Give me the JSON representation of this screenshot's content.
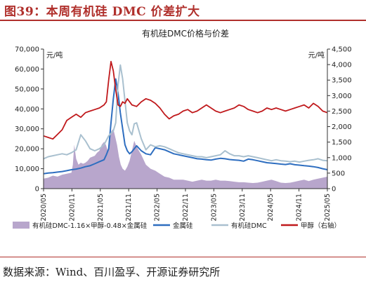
{
  "figure": {
    "title": "图39：本周有机硅 DMC 价差扩大",
    "source": "数据来源：Wind、百川盈孚、开源证券研究所"
  },
  "colors": {
    "title_red": "#b0302c",
    "spread_fill": "#b8a6cc",
    "metal_silicon": "#2e6ec0",
    "dmc": "#a9c0cf",
    "methanol": "#c0191c"
  },
  "chart_data": {
    "type": "line",
    "title": "有机硅DMC价格与价差",
    "left_axis": {
      "unit": "元/吨",
      "ylim": [
        0,
        70000
      ],
      "ticks": [
        0,
        10000,
        20000,
        30000,
        40000,
        50000,
        60000,
        70000
      ]
    },
    "right_axis": {
      "unit": "元/吨",
      "ylim": [
        0,
        4500
      ],
      "ticks": [
        0,
        500,
        1000,
        1500,
        2000,
        2500,
        3000,
        3500,
        4000,
        4500
      ]
    },
    "x_tick_labels": [
      "2020/05",
      "2020/11",
      "2021/05",
      "2021/11",
      "2022/05",
      "2022/11",
      "2023/05",
      "2023/11",
      "2024/05",
      "2024/11",
      "2025/05"
    ],
    "grid": false,
    "legend_position": "bottom",
    "series": [
      {
        "name": "有机硅DMC-1.16×甲醇-0.48×金属硅",
        "kind": "area",
        "axis": "left",
        "x": [
          0,
          1,
          2,
          3,
          4,
          5,
          6,
          6.3,
          6.6,
          7,
          7.5,
          8,
          8.5,
          9,
          9.5,
          10,
          10.5,
          11,
          11.5,
          12,
          12.5,
          13,
          13.4,
          13.8,
          14.2,
          14.6,
          15,
          15.4,
          15.8,
          16.2,
          16.6,
          17,
          17.5,
          18,
          18.5,
          19,
          19.5,
          20,
          21,
          22,
          23,
          24,
          25,
          26,
          27,
          28,
          29,
          30,
          31,
          32,
          33,
          34,
          35,
          36,
          37,
          38,
          39,
          40,
          41,
          42,
          43,
          44,
          45,
          46,
          47,
          48,
          49,
          50,
          51,
          52,
          53,
          54,
          55,
          56,
          57,
          58,
          59,
          60,
          61
        ],
        "y": [
          5000,
          5500,
          6500,
          6000,
          7000,
          7500,
          8000,
          12000,
          22000,
          15000,
          12000,
          13000,
          12500,
          13000,
          14000,
          15500,
          16000,
          16500,
          18000,
          19000,
          22000,
          23500,
          22000,
          19000,
          27000,
          29000,
          30000,
          26000,
          22000,
          16000,
          12000,
          10000,
          9000,
          11000,
          14000,
          19000,
          24000,
          21000,
          17000,
          12000,
          10000,
          9000,
          7500,
          6000,
          5500,
          4500,
          4500,
          4500,
          4000,
          3500,
          4000,
          4500,
          4000,
          4000,
          4500,
          4000,
          4000,
          3800,
          3500,
          3200,
          3200,
          3000,
          2800,
          3000,
          3500,
          4000,
          4500,
          3800,
          3000,
          2800,
          3000,
          3500,
          4000,
          4500,
          3800,
          4500,
          5000,
          5500,
          6000
        ]
      },
      {
        "name": "金属硅",
        "kind": "line",
        "axis": "left",
        "x": [
          0,
          1,
          2,
          3,
          4,
          5,
          6,
          7,
          8,
          9,
          10,
          11,
          12,
          13,
          13.5,
          14,
          14.5,
          15,
          15.5,
          16,
          16.5,
          17,
          17.5,
          18,
          18.5,
          19,
          20,
          21,
          22,
          23,
          24,
          25,
          26,
          27,
          28,
          29,
          30,
          31,
          32,
          33,
          34,
          35,
          36,
          37,
          38,
          39,
          40,
          41,
          42,
          43,
          44,
          45,
          46,
          47,
          48,
          49,
          50,
          51,
          52,
          53,
          54,
          55,
          56,
          57,
          58,
          59,
          60,
          61
        ],
        "y": [
          7500,
          7800,
          8000,
          8300,
          8600,
          9000,
          9500,
          9800,
          10300,
          11000,
          11500,
          12500,
          13500,
          14500,
          17000,
          20000,
          33000,
          45000,
          55000,
          48000,
          38000,
          30000,
          22000,
          19000,
          17500,
          18500,
          21500,
          19000,
          17500,
          17000,
          20500,
          20000,
          19500,
          18500,
          17500,
          17000,
          16500,
          16000,
          15500,
          15000,
          14800,
          14500,
          14300,
          14800,
          15200,
          15000,
          14600,
          14400,
          14200,
          13800,
          14800,
          14500,
          14000,
          13500,
          13000,
          12800,
          12600,
          12300,
          12100,
          12500,
          12000,
          11800,
          11500,
          11300,
          11000,
          10600,
          10000,
          9500
        ]
      },
      {
        "name": "有机硅DMC",
        "kind": "line",
        "axis": "left",
        "x": [
          0,
          1,
          2,
          3,
          4,
          5,
          6,
          7,
          8,
          9,
          10,
          11,
          12,
          13,
          14,
          15,
          15.5,
          16,
          16.5,
          17,
          17.5,
          18,
          18.5,
          19,
          19.5,
          20,
          21,
          22,
          23,
          24,
          25,
          26,
          27,
          28,
          29,
          30,
          31,
          32,
          33,
          34,
          35,
          36,
          37,
          38,
          39,
          40,
          41,
          42,
          43,
          44,
          45,
          46,
          47,
          48,
          49,
          50,
          51,
          52,
          53,
          54,
          55,
          56,
          57,
          58,
          59,
          60,
          61
        ],
        "y": [
          15000,
          16000,
          16500,
          17000,
          17500,
          17000,
          18000,
          19500,
          27000,
          24000,
          20000,
          19000,
          20000,
          22000,
          26500,
          29000,
          33000,
          52000,
          62000,
          55000,
          44000,
          33000,
          29000,
          27000,
          32500,
          33000,
          25000,
          19500,
          22000,
          21000,
          21500,
          21000,
          20000,
          19000,
          18000,
          17500,
          17000,
          16500,
          16000,
          16000,
          15500,
          16000,
          16500,
          17000,
          19000,
          17500,
          16500,
          16500,
          16000,
          16500,
          16000,
          15500,
          15000,
          14500,
          14000,
          14500,
          14000,
          13800,
          13500,
          13800,
          13300,
          13800,
          14200,
          14500,
          15000,
          14200,
          14000
        ]
      },
      {
        "name": "甲醇（右轴）",
        "kind": "line",
        "axis": "right",
        "x": [
          0,
          1,
          2,
          3,
          4,
          5,
          6,
          7,
          8,
          9,
          10,
          11,
          12,
          13,
          13.5,
          14,
          14.5,
          15,
          15.5,
          16,
          16.5,
          17,
          17.5,
          18,
          19,
          20,
          21,
          22,
          23,
          24,
          25,
          26,
          27,
          28,
          29,
          30,
          31,
          32,
          33,
          34,
          35,
          36,
          37,
          38,
          39,
          40,
          41,
          42,
          43,
          44,
          45,
          46,
          47,
          48,
          49,
          50,
          51,
          52,
          53,
          54,
          55,
          56,
          57,
          58,
          59,
          60,
          61
        ],
        "y": [
          1700,
          1650,
          1600,
          1750,
          1900,
          2200,
          2300,
          2400,
          2300,
          2450,
          2500,
          2550,
          2600,
          2700,
          2800,
          3500,
          4100,
          3800,
          3200,
          2700,
          2650,
          2800,
          2750,
          2900,
          2700,
          2650,
          2800,
          2900,
          2850,
          2750,
          2600,
          2400,
          2250,
          2350,
          2400,
          2500,
          2550,
          2450,
          2500,
          2600,
          2700,
          2600,
          2500,
          2450,
          2500,
          2550,
          2600,
          2700,
          2650,
          2550,
          2500,
          2450,
          2500,
          2600,
          2550,
          2600,
          2550,
          2500,
          2550,
          2600,
          2650,
          2700,
          2600,
          2750,
          2650,
          2500,
          2450
        ]
      }
    ]
  }
}
